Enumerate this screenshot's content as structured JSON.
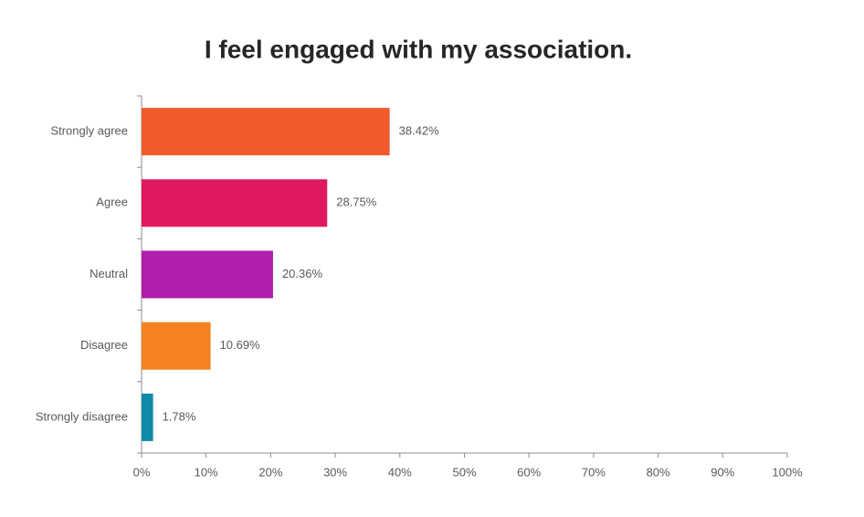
{
  "chart_data": {
    "type": "bar",
    "orientation": "horizontal",
    "title": "I feel engaged with my association.",
    "categories": [
      "Strongly agree",
      "Agree",
      "Neutral",
      "Disagree",
      "Strongly disagree"
    ],
    "values": [
      38.42,
      28.75,
      20.36,
      10.69,
      1.78
    ],
    "value_labels": [
      "38.42%",
      "28.75%",
      "20.36%",
      "10.69%",
      "1.78%"
    ],
    "colors": [
      "#f15a2b",
      "#e0185f",
      "#b01fab",
      "#f58220",
      "#0f8aa8"
    ],
    "xlim": [
      0,
      100
    ],
    "xticks": [
      {
        "value": 0,
        "label": "0%"
      },
      {
        "value": 10,
        "label": "10%"
      },
      {
        "value": 20,
        "label": "20%"
      },
      {
        "value": 30,
        "label": "30%"
      },
      {
        "value": 40,
        "label": "40%"
      },
      {
        "value": 50,
        "label": "50%"
      },
      {
        "value": 60,
        "label": "60%"
      },
      {
        "value": 70,
        "label": "70%"
      },
      {
        "value": 80,
        "label": "80%"
      },
      {
        "value": 90,
        "label": "90%"
      },
      {
        "value": 100,
        "label": "100%"
      }
    ],
    "grid": false
  }
}
